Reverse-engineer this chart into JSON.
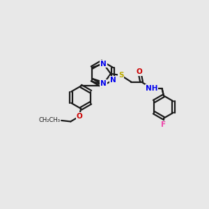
{
  "bg_color": "#e8e8e8",
  "bond_color": "#1a1a1a",
  "bond_lw": 1.6,
  "atom_colors": {
    "N": "#0000ee",
    "O": "#cc0000",
    "S": "#bbaa00",
    "F": "#ee44aa",
    "C": "#1a1a1a"
  },
  "font_size": 7.5,
  "r6": 0.6,
  "bl": 0.6
}
